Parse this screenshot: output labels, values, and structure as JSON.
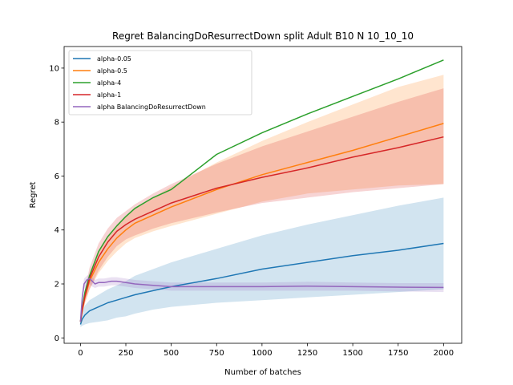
{
  "chart_data": {
    "type": "line",
    "title": "Regret BalancingDoResurrectDown split Adult B10 N 10_10_10",
    "xlabel": "Number of batches",
    "ylabel": "Regret",
    "xlim": [
      -90,
      2100
    ],
    "ylim": [
      -0.2,
      10.8
    ],
    "xticks": [
      0,
      250,
      500,
      750,
      1000,
      1250,
      1500,
      1750,
      2000
    ],
    "yticks": [
      0,
      2,
      4,
      6,
      8,
      10
    ],
    "legend_position": "upper-left",
    "series": [
      {
        "name": "alpha-0.05",
        "color": "#1f77b4",
        "x": [
          0,
          10,
          25,
          50,
          100,
          150,
          200,
          250,
          300,
          400,
          500,
          750,
          1000,
          1250,
          1500,
          1750,
          2000
        ],
        "y": [
          0.5,
          0.7,
          0.85,
          1.0,
          1.15,
          1.3,
          1.4,
          1.5,
          1.6,
          1.75,
          1.9,
          2.2,
          2.55,
          2.8,
          3.05,
          3.25,
          3.5
        ],
        "lower": [
          0.4,
          0.45,
          0.5,
          0.55,
          0.6,
          0.65,
          0.75,
          0.8,
          0.9,
          1.05,
          1.15,
          1.3,
          1.4,
          1.5,
          1.6,
          1.7,
          1.8
        ],
        "upper": [
          0.7,
          1.0,
          1.2,
          1.4,
          1.6,
          1.8,
          1.95,
          2.1,
          2.3,
          2.55,
          2.8,
          3.3,
          3.8,
          4.2,
          4.55,
          4.9,
          5.2
        ]
      },
      {
        "name": "alpha-0.5",
        "color": "#ff7f0e",
        "x": [
          0,
          10,
          25,
          50,
          100,
          150,
          200,
          250,
          300,
          400,
          500,
          750,
          1000,
          1250,
          1500,
          1750,
          2000
        ],
        "y": [
          0.6,
          1.0,
          1.5,
          2.1,
          2.8,
          3.3,
          3.7,
          4.0,
          4.25,
          4.55,
          4.85,
          5.5,
          6.05,
          6.5,
          6.95,
          7.45,
          7.95
        ],
        "lower": [
          0.5,
          0.9,
          1.3,
          1.8,
          2.4,
          2.85,
          3.2,
          3.5,
          3.7,
          3.95,
          4.15,
          4.6,
          5.05,
          5.35,
          5.5,
          5.65,
          5.7
        ],
        "upper": [
          0.7,
          1.1,
          1.7,
          2.4,
          3.2,
          3.75,
          4.2,
          4.5,
          4.8,
          5.2,
          5.6,
          6.5,
          7.3,
          8.0,
          8.65,
          9.3,
          9.75
        ]
      },
      {
        "name": "alpha-4",
        "color": "#2ca02c",
        "x": [
          0,
          10,
          25,
          50,
          100,
          150,
          200,
          250,
          300,
          400,
          500,
          750,
          1000,
          1250,
          1500,
          1750,
          2000
        ],
        "y": [
          0.6,
          1.1,
          1.7,
          2.3,
          3.2,
          3.75,
          4.15,
          4.5,
          4.8,
          5.2,
          5.5,
          6.8,
          7.6,
          8.3,
          8.95,
          9.6,
          10.3
        ],
        "lower": [],
        "upper": []
      },
      {
        "name": "alpha-1",
        "color": "#d62728",
        "x": [
          0,
          10,
          25,
          50,
          100,
          150,
          200,
          250,
          300,
          400,
          500,
          750,
          1000,
          1250,
          1500,
          1750,
          2000
        ],
        "y": [
          0.6,
          1.05,
          1.55,
          2.2,
          3.0,
          3.55,
          3.95,
          4.2,
          4.4,
          4.7,
          5.0,
          5.55,
          5.95,
          6.3,
          6.7,
          7.05,
          7.45
        ],
        "lower": [
          0.5,
          0.9,
          1.3,
          1.8,
          2.5,
          3.0,
          3.4,
          3.65,
          3.8,
          4.05,
          4.25,
          4.65,
          5.0,
          5.2,
          5.4,
          5.55,
          5.7
        ],
        "upper": [
          0.7,
          1.2,
          1.8,
          2.6,
          3.5,
          4.05,
          4.45,
          4.7,
          4.95,
          5.35,
          5.7,
          6.45,
          7.1,
          7.65,
          8.2,
          8.75,
          9.25
        ]
      },
      {
        "name": "alpha BalancingDoResurrectDown",
        "color": "#9467bd",
        "x": [
          0,
          10,
          20,
          35,
          50,
          65,
          80,
          100,
          130,
          170,
          200,
          250,
          300,
          400,
          500,
          750,
          1000,
          1250,
          1500,
          1750,
          2000
        ],
        "y": [
          0.6,
          1.5,
          2.0,
          2.15,
          2.2,
          2.1,
          2.0,
          2.05,
          2.05,
          2.1,
          2.1,
          2.05,
          2.0,
          1.95,
          1.9,
          1.9,
          1.9,
          1.92,
          1.9,
          1.88,
          1.87
        ],
        "lower": [
          0.5,
          1.3,
          1.8,
          1.95,
          2.0,
          1.9,
          1.85,
          1.9,
          1.9,
          1.95,
          1.95,
          1.9,
          1.85,
          1.8,
          1.75,
          1.75,
          1.75,
          1.75,
          1.75,
          1.72,
          1.7
        ],
        "upper": [
          0.7,
          1.7,
          2.2,
          2.3,
          2.35,
          2.25,
          2.15,
          2.2,
          2.2,
          2.25,
          2.25,
          2.2,
          2.15,
          2.1,
          2.05,
          2.05,
          2.05,
          2.08,
          2.05,
          2.03,
          2.03
        ]
      }
    ],
    "legend": [
      {
        "label": "alpha-0.05",
        "color": "#1f77b4"
      },
      {
        "label": "alpha-0.5",
        "color": "#ff7f0e"
      },
      {
        "label": "alpha-4",
        "color": "#2ca02c"
      },
      {
        "label": "alpha-1",
        "color": "#d62728"
      },
      {
        "label": "alpha BalancingDoResurrectDown",
        "color": "#9467bd"
      }
    ]
  }
}
